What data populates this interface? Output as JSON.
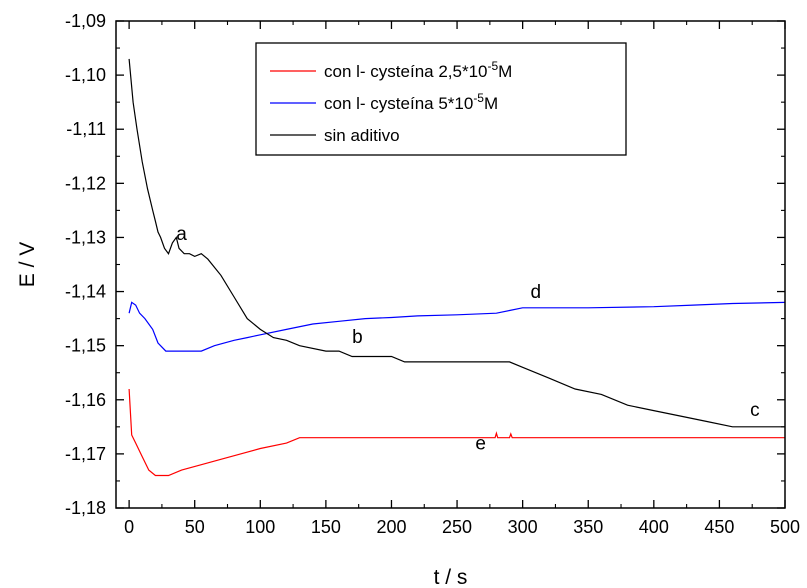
{
  "chart_data": {
    "type": "line",
    "xlabel": "t / s",
    "ylabel": "E / V",
    "xlim": [
      -10,
      500
    ],
    "ylim": [
      -1.18,
      -1.09
    ],
    "x_ticks": [
      0,
      50,
      100,
      150,
      200,
      250,
      300,
      350,
      400,
      450,
      500
    ],
    "y_ticks": [
      -1.18,
      -1.17,
      -1.16,
      -1.15,
      -1.14,
      -1.13,
      -1.12,
      -1.11,
      -1.1,
      -1.09
    ],
    "x_tick_labels": [
      "0",
      "50",
      "100",
      "150",
      "200",
      "250",
      "300",
      "350",
      "400",
      "450",
      "500"
    ],
    "y_tick_labels": [
      "-1,18",
      "-1,17",
      "-1,16",
      "-1,15",
      "-1,14",
      "-1,13",
      "-1,12",
      "-1,11",
      "-1,10",
      "-1,09"
    ],
    "grid": false,
    "legend_position": "top-center",
    "legend": [
      {
        "series": "red",
        "prefix": "con l- cysteína 2,5*10",
        "sup": "-5",
        "suffix": "M"
      },
      {
        "series": "blue",
        "prefix": "con l- cysteína    5*10",
        "sup": "-5",
        "suffix": "M"
      },
      {
        "series": "black",
        "prefix": "sin aditivo",
        "sup": "",
        "suffix": ""
      }
    ],
    "series": [
      {
        "key": "red",
        "color": "#ff0000",
        "points": [
          [
            0,
            -1.158
          ],
          [
            2,
            -1.1665
          ],
          [
            5,
            -1.168
          ],
          [
            10,
            -1.1705
          ],
          [
            15,
            -1.173
          ],
          [
            20,
            -1.174
          ],
          [
            30,
            -1.174
          ],
          [
            40,
            -1.173
          ],
          [
            55,
            -1.172
          ],
          [
            70,
            -1.171
          ],
          [
            85,
            -1.17
          ],
          [
            100,
            -1.169
          ],
          [
            120,
            -1.168
          ],
          [
            130,
            -1.167
          ],
          [
            200,
            -1.167
          ],
          [
            279,
            -1.167
          ],
          [
            280,
            -1.1662
          ],
          [
            281,
            -1.167
          ],
          [
            290,
            -1.167
          ],
          [
            291,
            -1.1663
          ],
          [
            292,
            -1.167
          ],
          [
            500,
            -1.167
          ]
        ]
      },
      {
        "key": "blue",
        "color": "#0000ff",
        "points": [
          [
            0,
            -1.144
          ],
          [
            2,
            -1.142
          ],
          [
            5,
            -1.1425
          ],
          [
            8,
            -1.144
          ],
          [
            12,
            -1.145
          ],
          [
            18,
            -1.147
          ],
          [
            22,
            -1.1495
          ],
          [
            28,
            -1.151
          ],
          [
            40,
            -1.151
          ],
          [
            55,
            -1.151
          ],
          [
            65,
            -1.15
          ],
          [
            80,
            -1.149
          ],
          [
            90,
            -1.1485
          ],
          [
            100,
            -1.148
          ],
          [
            120,
            -1.147
          ],
          [
            140,
            -1.146
          ],
          [
            160,
            -1.1455
          ],
          [
            180,
            -1.145
          ],
          [
            200,
            -1.1448
          ],
          [
            220,
            -1.1445
          ],
          [
            250,
            -1.1443
          ],
          [
            280,
            -1.144
          ],
          [
            290,
            -1.1435
          ],
          [
            300,
            -1.143
          ],
          [
            350,
            -1.143
          ],
          [
            400,
            -1.1428
          ],
          [
            430,
            -1.1425
          ],
          [
            460,
            -1.1422
          ],
          [
            500,
            -1.142
          ]
        ]
      },
      {
        "key": "black",
        "color": "#000000",
        "points": [
          [
            0,
            -1.097
          ],
          [
            3,
            -1.105
          ],
          [
            6,
            -1.11
          ],
          [
            10,
            -1.116
          ],
          [
            14,
            -1.121
          ],
          [
            18,
            -1.125
          ],
          [
            20,
            -1.127
          ],
          [
            22,
            -1.129
          ],
          [
            24,
            -1.13
          ],
          [
            27,
            -1.132
          ],
          [
            30,
            -1.133
          ],
          [
            33,
            -1.131
          ],
          [
            36,
            -1.13
          ],
          [
            38,
            -1.132
          ],
          [
            42,
            -1.133
          ],
          [
            46,
            -1.133
          ],
          [
            50,
            -1.1335
          ],
          [
            55,
            -1.133
          ],
          [
            60,
            -1.134
          ],
          [
            70,
            -1.137
          ],
          [
            80,
            -1.141
          ],
          [
            90,
            -1.145
          ],
          [
            100,
            -1.147
          ],
          [
            110,
            -1.1485
          ],
          [
            120,
            -1.149
          ],
          [
            130,
            -1.15
          ],
          [
            150,
            -1.151
          ],
          [
            160,
            -1.151
          ],
          [
            170,
            -1.152
          ],
          [
            200,
            -1.152
          ],
          [
            210,
            -1.153
          ],
          [
            290,
            -1.153
          ],
          [
            300,
            -1.154
          ],
          [
            320,
            -1.156
          ],
          [
            340,
            -1.158
          ],
          [
            360,
            -1.159
          ],
          [
            380,
            -1.161
          ],
          [
            400,
            -1.162
          ],
          [
            420,
            -1.163
          ],
          [
            440,
            -1.164
          ],
          [
            460,
            -1.165
          ],
          [
            500,
            -1.165
          ]
        ]
      }
    ],
    "annotations": [
      {
        "text": "a",
        "x": 40,
        "y": -1.1305
      },
      {
        "text": "b",
        "x": 174,
        "y": -1.1495
      },
      {
        "text": "c",
        "x": 477,
        "y": -1.163
      },
      {
        "text": "d",
        "x": 310,
        "y": -1.1412
      },
      {
        "text": "e",
        "x": 268,
        "y": -1.1692
      }
    ]
  }
}
